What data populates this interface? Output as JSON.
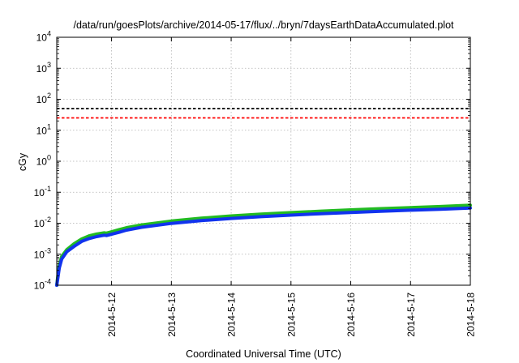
{
  "chart_data": {
    "type": "line",
    "title": "/data/run/goesPlots/archive/2014-05-17/flux/../bryn/7daysEarthDataAccumulated.plot",
    "xlabel": "Coordinated Universal Time (UTC)",
    "ylabel": "cGy",
    "y_scale": "log",
    "ylim": [
      0.0001,
      10000
    ],
    "y_ticks": [
      {
        "value": 0.0001,
        "base": "10",
        "exp": "-4"
      },
      {
        "value": 0.001,
        "base": "10",
        "exp": "-3"
      },
      {
        "value": 0.01,
        "base": "10",
        "exp": "-2"
      },
      {
        "value": 0.1,
        "base": "10",
        "exp": "-1"
      },
      {
        "value": 1,
        "base": "10",
        "exp": "0"
      },
      {
        "value": 10,
        "base": "10",
        "exp": "1"
      },
      {
        "value": 100,
        "base": "10",
        "exp": "2"
      },
      {
        "value": 1000,
        "base": "10",
        "exp": "3"
      },
      {
        "value": 10000,
        "base": "10",
        "exp": "4"
      }
    ],
    "xlim": [
      "2014-05-11T02:00",
      "2014-05-18T00:00"
    ],
    "x_ticks": [
      "2014-5-12",
      "2014-5-13",
      "2014-5-14",
      "2014-5-15",
      "2014-5-16",
      "2014-5-17",
      "2014-5-18"
    ],
    "grid": true,
    "series": [
      {
        "color": "#22bb22",
        "x": [
          "2014-05-11T02:00",
          "2014-05-11T02:30",
          "2014-05-11T03:00",
          "2014-05-11T04:00",
          "2014-05-11T06:00",
          "2014-05-11T09:00",
          "2014-05-11T12:00",
          "2014-05-11T15:00",
          "2014-05-11T18:00",
          "2014-05-11T21:00",
          "2014-05-11T22:00",
          "2014-05-12T00:00",
          "2014-05-12T03:00",
          "2014-05-12T06:00",
          "2014-05-12T12:00",
          "2014-05-13T00:00",
          "2014-05-13T12:00",
          "2014-05-14T00:00",
          "2014-05-14T12:00",
          "2014-05-15T00:00",
          "2014-05-15T12:00",
          "2014-05-16T00:00",
          "2014-05-16T12:00",
          "2014-05-17T00:00",
          "2014-05-17T12:00",
          "2014-05-18T00:00"
        ],
        "y": [
          0.0001,
          0.00022,
          0.00045,
          0.00085,
          0.0014,
          0.0022,
          0.0031,
          0.0039,
          0.0045,
          0.0049,
          0.0048,
          0.0053,
          0.0062,
          0.0072,
          0.0088,
          0.0118,
          0.0145,
          0.0172,
          0.0196,
          0.022,
          0.0245,
          0.027,
          0.0295,
          0.032,
          0.0345,
          0.038
        ]
      },
      {
        "color": "#1133ee",
        "x": [
          "2014-05-11T02:00",
          "2014-05-11T02:30",
          "2014-05-11T03:00",
          "2014-05-11T04:00",
          "2014-05-11T06:00",
          "2014-05-11T09:00",
          "2014-05-11T12:00",
          "2014-05-11T15:00",
          "2014-05-11T18:00",
          "2014-05-11T21:00",
          "2014-05-11T22:00",
          "2014-05-12T00:00",
          "2014-05-12T03:00",
          "2014-05-12T06:00",
          "2014-05-12T12:00",
          "2014-05-13T00:00",
          "2014-05-13T12:00",
          "2014-05-14T00:00",
          "2014-05-14T12:00",
          "2014-05-15T00:00",
          "2014-05-15T12:00",
          "2014-05-16T00:00",
          "2014-05-16T12:00",
          "2014-05-17T00:00",
          "2014-05-17T12:00",
          "2014-05-18T00:00"
        ],
        "y": [
          0.0001,
          0.00018,
          0.00036,
          0.0007,
          0.0012,
          0.0018,
          0.0026,
          0.0032,
          0.0037,
          0.0041,
          0.004,
          0.0044,
          0.0051,
          0.006,
          0.0074,
          0.0099,
          0.0121,
          0.0143,
          0.0163,
          0.0183,
          0.0203,
          0.0223,
          0.0243,
          0.0263,
          0.0283,
          0.031
        ]
      },
      {
        "color": "#000000",
        "dash": true,
        "x": [
          "2014-05-11T02:00",
          "2014-05-18T00:00"
        ],
        "y": [
          50,
          50
        ]
      },
      {
        "color": "#ff0000",
        "dash": true,
        "x": [
          "2014-05-11T02:00",
          "2014-05-18T00:00"
        ],
        "y": [
          25,
          25
        ]
      }
    ]
  }
}
